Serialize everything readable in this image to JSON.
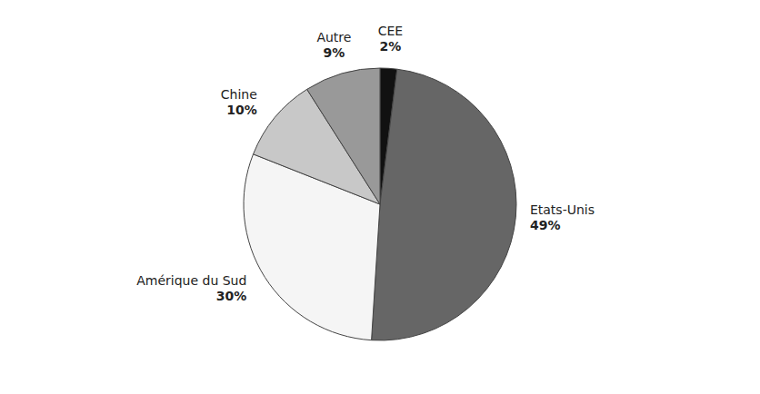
{
  "chart_data": {
    "type": "pie",
    "categories": [
      "CEE",
      "Etats-Unis",
      "Amérique du Sud",
      "Chine",
      "Autre"
    ],
    "values": [
      2,
      49,
      30,
      10,
      9
    ],
    "value_labels": [
      "2%",
      "49%",
      "30%",
      "10%",
      "9%"
    ],
    "colors": [
      "#111111",
      "#666666",
      "#f5f5f5",
      "#c8c8c8",
      "#999999"
    ],
    "data_labels": true
  }
}
